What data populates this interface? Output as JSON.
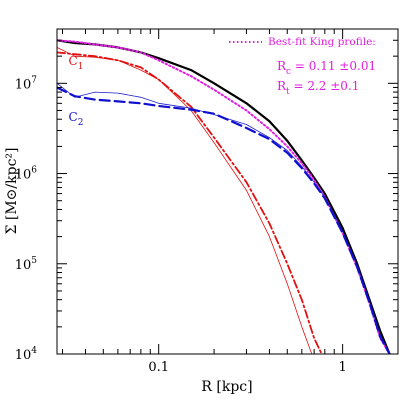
{
  "chart_data": {
    "type": "line",
    "title": "",
    "xlabel": "R [kpc]",
    "ylabel": "Σ [M⊙/kpc²]",
    "xscale": "log",
    "yscale": "log",
    "xlim": [
      0.028,
      2.0
    ],
    "ylim": [
      10000,
      40000000
    ],
    "xticks": [
      {
        "value": 0.1,
        "label": "0.1"
      },
      {
        "value": 1,
        "label": "1"
      }
    ],
    "yticks": [
      {
        "value": 10000,
        "base": "10",
        "exp": "4"
      },
      {
        "value": 100000,
        "base": "10",
        "exp": "5"
      },
      {
        "value": 1000000,
        "base": "10",
        "exp": "6"
      },
      {
        "value": 10000000,
        "base": "10",
        "exp": "7"
      }
    ],
    "grid": false,
    "legend": {
      "placement": "top-right",
      "entry": "Best-fit King profile:",
      "color": "#e020e0",
      "params": [
        {
          "sym": "R",
          "sub": "c",
          "text": " = 0.11 ±0.01"
        },
        {
          "sym": "R",
          "sub": "t",
          "text": " = 2.2 ±0.1"
        }
      ]
    },
    "annotations": [
      {
        "sym": "C",
        "sub": "1",
        "color": "#e01010",
        "x": 0.03,
        "y": 16000000
      },
      {
        "sym": "C",
        "sub": "2",
        "color": "#1010d0",
        "x": 0.03,
        "y": 3800000
      }
    ],
    "series": [
      {
        "id": "total",
        "color": "#000000",
        "dash": "",
        "width": 2.2,
        "x": [
          0.028,
          0.035,
          0.045,
          0.06,
          0.08,
          0.1,
          0.15,
          0.2,
          0.3,
          0.4,
          0.5,
          0.6,
          0.7,
          0.8,
          1.0,
          1.2,
          1.4,
          1.6,
          1.8
        ],
        "y": [
          30000000,
          28000000,
          27000000,
          25000000,
          22000000,
          19000000,
          14000000,
          10000000,
          6000000,
          3800000,
          2300000,
          1400000,
          900000,
          600000,
          250000,
          100000,
          40000,
          18000,
          10000
        ]
      },
      {
        "id": "king",
        "color": "#e020e0",
        "dash": "1.5,2.5",
        "width": 2,
        "x": [
          0.028,
          0.035,
          0.045,
          0.06,
          0.08,
          0.1,
          0.15,
          0.2,
          0.3,
          0.4,
          0.5,
          0.6,
          0.7,
          0.8,
          1.0,
          1.2,
          1.4,
          1.6,
          1.8
        ],
        "y": [
          30000000,
          29000000,
          27000000,
          25000000,
          22000000,
          18000000,
          12000000,
          8500000,
          5000000,
          3100000,
          2000000,
          1300000,
          850000,
          550000,
          220000,
          90000,
          36000,
          15000,
          10000
        ]
      },
      {
        "id": "c1-thin",
        "color": "#e01010",
        "dash": "",
        "width": 0.8,
        "x": [
          0.028,
          0.035,
          0.045,
          0.06,
          0.08,
          0.1,
          0.15,
          0.2,
          0.3,
          0.4,
          0.5,
          0.6,
          0.68
        ],
        "y": [
          25000000,
          20000000,
          19500000,
          18000000,
          14000000,
          11000000,
          5000000,
          2200000,
          650000,
          200000,
          60000,
          20000,
          10000
        ]
      },
      {
        "id": "c1-dashdot",
        "color": "#e01010",
        "dash": "8,3,2,3",
        "width": 1.8,
        "x": [
          0.028,
          0.035,
          0.045,
          0.06,
          0.08,
          0.1,
          0.15,
          0.2,
          0.3,
          0.4,
          0.5,
          0.6,
          0.7,
          0.77
        ],
        "y": [
          22000000,
          21000000,
          20000000,
          18000000,
          15000000,
          11000000,
          5500000,
          2500000,
          800000,
          280000,
          100000,
          40000,
          15000,
          10000
        ]
      },
      {
        "id": "c2-thin",
        "color": "#2020d0",
        "dash": "",
        "width": 0.8,
        "x": [
          0.028,
          0.035,
          0.045,
          0.06,
          0.08,
          0.1,
          0.15,
          0.2,
          0.3,
          0.4,
          0.5,
          0.6,
          0.7,
          0.8,
          1.0,
          1.2,
          1.4,
          1.6,
          1.8
        ],
        "y": [
          10000000,
          7000000,
          8000000,
          7800000,
          7000000,
          6000000,
          5300000,
          4500000,
          3500000,
          2500000,
          1800000,
          1200000,
          800000,
          550000,
          230000,
          95000,
          38000,
          16000,
          10000
        ]
      },
      {
        "id": "c2-dashed",
        "color": "#1010d0",
        "dash": "10,5",
        "width": 2.2,
        "x": [
          0.028,
          0.035,
          0.045,
          0.06,
          0.08,
          0.1,
          0.15,
          0.2,
          0.3,
          0.4,
          0.5,
          0.6,
          0.7,
          0.8,
          1.0,
          1.2,
          1.4,
          1.6,
          1.8
        ],
        "y": [
          9000000,
          7200000,
          6600000,
          6300000,
          6000000,
          5600000,
          5100000,
          4600000,
          3200000,
          2400000,
          1700000,
          1150000,
          780000,
          530000,
          220000,
          92000,
          37000,
          15500,
          10000
        ]
      }
    ]
  }
}
